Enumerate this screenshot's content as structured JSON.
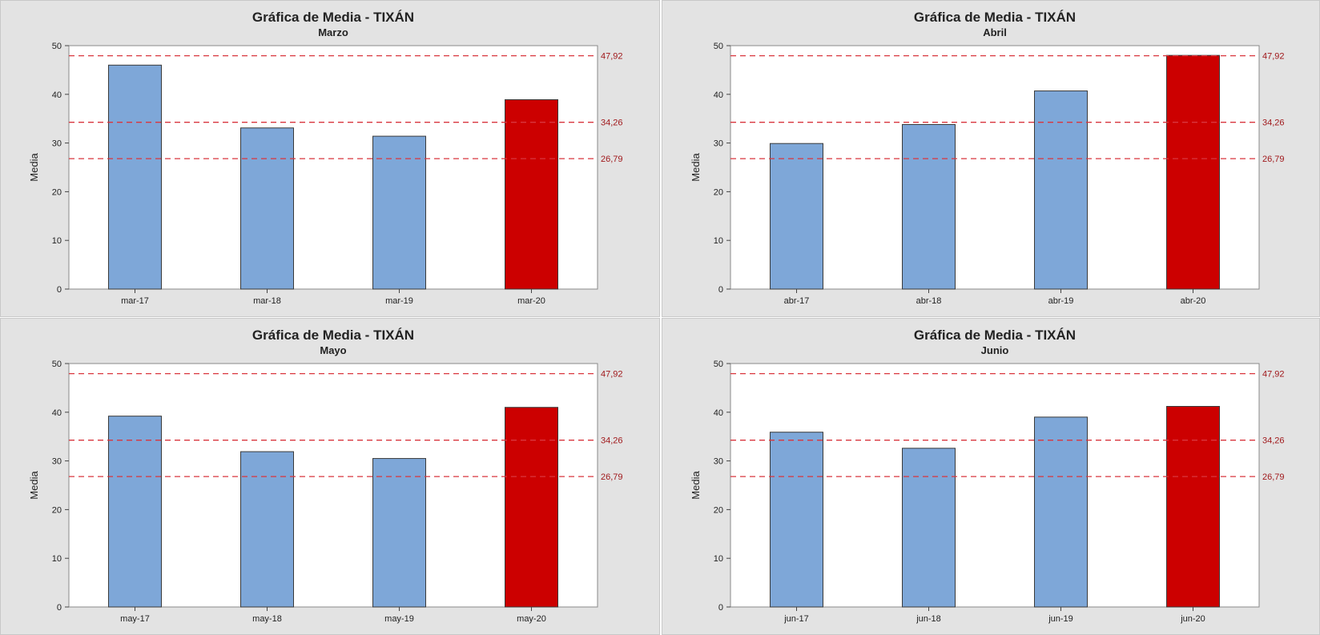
{
  "chart_data": [
    {
      "type": "bar",
      "title": "Gráfica de Media - TIXÁN",
      "subtitle": "Marzo",
      "ylabel": "Media",
      "ylim": [
        0,
        50
      ],
      "yticks": [
        0,
        10,
        20,
        30,
        40,
        50
      ],
      "categories": [
        "mar-17",
        "mar-18",
        "mar-19",
        "mar-20"
      ],
      "values": [
        46.0,
        33.1,
        31.4,
        38.9
      ],
      "highlight_index": 3,
      "reference_lines": [
        {
          "value": 47.92,
          "label": "47,92"
        },
        {
          "value": 34.26,
          "label": "34,26"
        },
        {
          "value": 26.79,
          "label": "26,79"
        }
      ]
    },
    {
      "type": "bar",
      "title": "Gráfica de Media - TIXÁN",
      "subtitle": "Abril",
      "ylabel": "Media",
      "ylim": [
        0,
        50
      ],
      "yticks": [
        0,
        10,
        20,
        30,
        40,
        50
      ],
      "categories": [
        "abr-17",
        "abr-18",
        "abr-19",
        "abr-20"
      ],
      "values": [
        29.9,
        33.8,
        40.7,
        48.0
      ],
      "highlight_index": 3,
      "reference_lines": [
        {
          "value": 47.92,
          "label": "47,92"
        },
        {
          "value": 34.26,
          "label": "34,26"
        },
        {
          "value": 26.79,
          "label": "26,79"
        }
      ]
    },
    {
      "type": "bar",
      "title": "Gráfica de Media - TIXÁN",
      "subtitle": "Mayo",
      "ylabel": "Media",
      "ylim": [
        0,
        50
      ],
      "yticks": [
        0,
        10,
        20,
        30,
        40,
        50
      ],
      "categories": [
        "may-17",
        "may-18",
        "may-19",
        "may-20"
      ],
      "values": [
        39.2,
        31.9,
        30.5,
        41.0
      ],
      "highlight_index": 3,
      "reference_lines": [
        {
          "value": 47.92,
          "label": "47,92"
        },
        {
          "value": 34.26,
          "label": "34,26"
        },
        {
          "value": 26.79,
          "label": "26,79"
        }
      ]
    },
    {
      "type": "bar",
      "title": "Gráfica de Media - TIXÁN",
      "subtitle": "Junio",
      "ylabel": "Media",
      "ylim": [
        0,
        50
      ],
      "yticks": [
        0,
        10,
        20,
        30,
        40,
        50
      ],
      "categories": [
        "jun-17",
        "jun-18",
        "jun-19",
        "jun-20"
      ],
      "values": [
        35.9,
        32.6,
        39.0,
        41.2
      ],
      "highlight_index": 3,
      "reference_lines": [
        {
          "value": 47.92,
          "label": "47,92"
        },
        {
          "value": 34.26,
          "label": "34,26"
        },
        {
          "value": 26.79,
          "label": "26,79"
        }
      ]
    }
  ],
  "colors": {
    "bar": "#7ea7d8",
    "bar_highlight": "#cc0000",
    "bar_outline": "#3a3a3a",
    "reference_line": "#d9363e",
    "reference_label": "#a0181b",
    "panel_background": "#e3e3e3",
    "plot_background": "#ffffff"
  }
}
